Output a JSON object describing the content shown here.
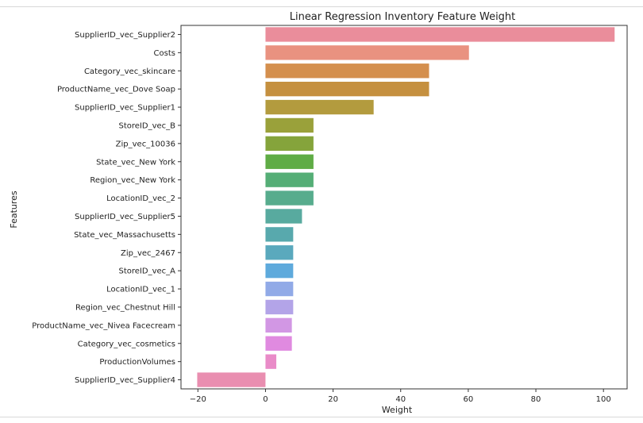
{
  "chart_data": {
    "type": "bar",
    "orientation": "horizontal",
    "title": "Linear Regression Inventory Feature Weight",
    "xlabel": "Weight",
    "ylabel": "Features",
    "xlim": [
      -25,
      107
    ],
    "xticks": [
      -20,
      0,
      20,
      40,
      60,
      80,
      100
    ],
    "grid": false,
    "categories": [
      "SupplierID_vec_Supplier2",
      "Costs",
      "Category_vec_skincare",
      "ProductName_vec_Dove Soap",
      "SupplierID_vec_Supplier1",
      "StoreID_vec_B",
      "Zip_vec_10036",
      "State_vec_New York",
      "Region_vec_New York",
      "LocationID_vec_2",
      "SupplierID_vec_Supplier5",
      "State_vec_Massachusetts",
      "Zip_vec_2467",
      "StoreID_vec_A",
      "LocationID_vec_1",
      "Region_vec_Chestnut Hill",
      "ProductName_vec_Nivea Facecream",
      "Category_vec_cosmetics",
      "ProductionVolumes",
      "SupplierID_vec_Supplier4"
    ],
    "values": [
      103.3,
      60.2,
      48.4,
      48.4,
      32.0,
      14.2,
      14.2,
      14.2,
      14.2,
      14.2,
      10.8,
      8.2,
      8.2,
      8.2,
      8.2,
      8.2,
      7.8,
      7.8,
      3.2,
      -20.2
    ],
    "colors": [
      "#ea8d9b",
      "#e99280",
      "#d48f4e",
      "#c5903f",
      "#b39b3e",
      "#9aa13a",
      "#85a43b",
      "#5fac45",
      "#55ae76",
      "#57ac8d",
      "#58aa9f",
      "#58a9ad",
      "#5aa9bd",
      "#5eaadc",
      "#91aae7",
      "#b3a4e8",
      "#d297e4",
      "#e08ae0",
      "#e98bc8",
      "#e98eb0"
    ]
  }
}
